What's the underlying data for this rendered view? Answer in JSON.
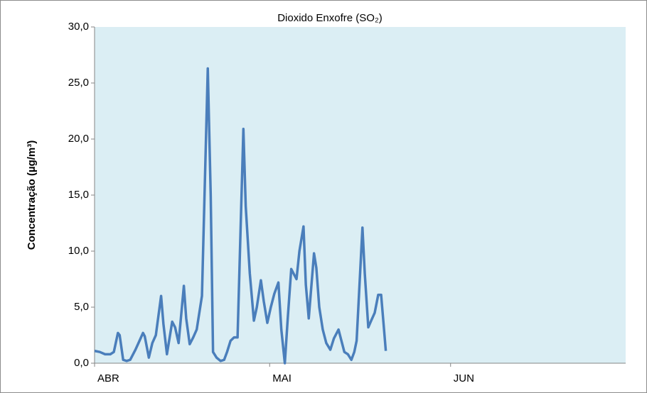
{
  "chart_data": {
    "type": "line",
    "title": "Dioxido Enxofre (SO₂)",
    "y_label": "Concentração (µg/m³)",
    "x": [
      0,
      0.9,
      1.8,
      2.7,
      3.3,
      4.0,
      4.3,
      4.9,
      5.5,
      6.1,
      7.0,
      7.7,
      8.3,
      8.6,
      9.3,
      9.9,
      10.5,
      11.4,
      11.8,
      12.4,
      13.3,
      13.8,
      14.4,
      15.3,
      15.7,
      16.3,
      16.9,
      17.5,
      18.4,
      19.4,
      19.9,
      20.3,
      20.9,
      21.6,
      22.2,
      22.7,
      23.3,
      23.9,
      24.5,
      25.5,
      25.9,
      26.6,
      27.3,
      27.8,
      28.5,
      29.0,
      29.6,
      30.2,
      30.8,
      31.5,
      32.0,
      32.6,
      33.1,
      33.7,
      34.6,
      35.1,
      35.8,
      36.2,
      36.7,
      37.6,
      38.0,
      38.5,
      39.1,
      39.7,
      40.4,
      41.0,
      41.8,
      42.3,
      42.8,
      43.4,
      44.0,
      44.5,
      44.9,
      45.9,
      46.3,
      46.9,
      47.4,
      48.0,
      48.6,
      49.1,
      49.6,
      49.9
    ],
    "series": [
      {
        "color": "#4a7ebb",
        "values": [
          1.1,
          1.0,
          0.8,
          0.8,
          1.0,
          2.7,
          2.5,
          0.3,
          0.2,
          0.3,
          1.2,
          2.0,
          2.7,
          2.4,
          0.5,
          1.8,
          2.5,
          6.0,
          3.5,
          0.8,
          3.7,
          3.2,
          1.8,
          6.9,
          4.0,
          1.7,
          2.3,
          3.0,
          6.0,
          26.3,
          15.0,
          1.0,
          0.5,
          0.2,
          0.3,
          1.0,
          2.0,
          2.3,
          2.3,
          20.9,
          14.0,
          8.0,
          3.8,
          5.0,
          7.4,
          5.5,
          3.6,
          5.0,
          6.2,
          7.2,
          3.0,
          0,
          4.0,
          8.4,
          7.5,
          10.0,
          12.2,
          7.0,
          4.0,
          9.8,
          8.5,
          5.0,
          3.0,
          1.8,
          1.2,
          2.2,
          3.0,
          2.0,
          1.0,
          0.8,
          0.3,
          1.0,
          2.0,
          12.1,
          8.0,
          3.2,
          3.8,
          4.5,
          6.1,
          6.1,
          3.0,
          1.1
        ]
      }
    ],
    "xlim": [
      0,
      91
    ],
    "xticks": [
      {
        "value": 0,
        "label": "ABR"
      },
      {
        "value": 30,
        "label": "MAI"
      },
      {
        "value": 61,
        "label": "JUN"
      }
    ],
    "ylim": [
      0,
      30
    ],
    "yticks": [
      {
        "value": 0,
        "label": "0,0"
      },
      {
        "value": 5,
        "label": "5,0"
      },
      {
        "value": 10,
        "label": "10,0"
      },
      {
        "value": 15,
        "label": "15,0"
      },
      {
        "value": 20,
        "label": "20,0"
      },
      {
        "value": 25,
        "label": "25,0"
      },
      {
        "value": 30,
        "label": "30,0"
      }
    ],
    "plot_background": "#dbeef4"
  }
}
